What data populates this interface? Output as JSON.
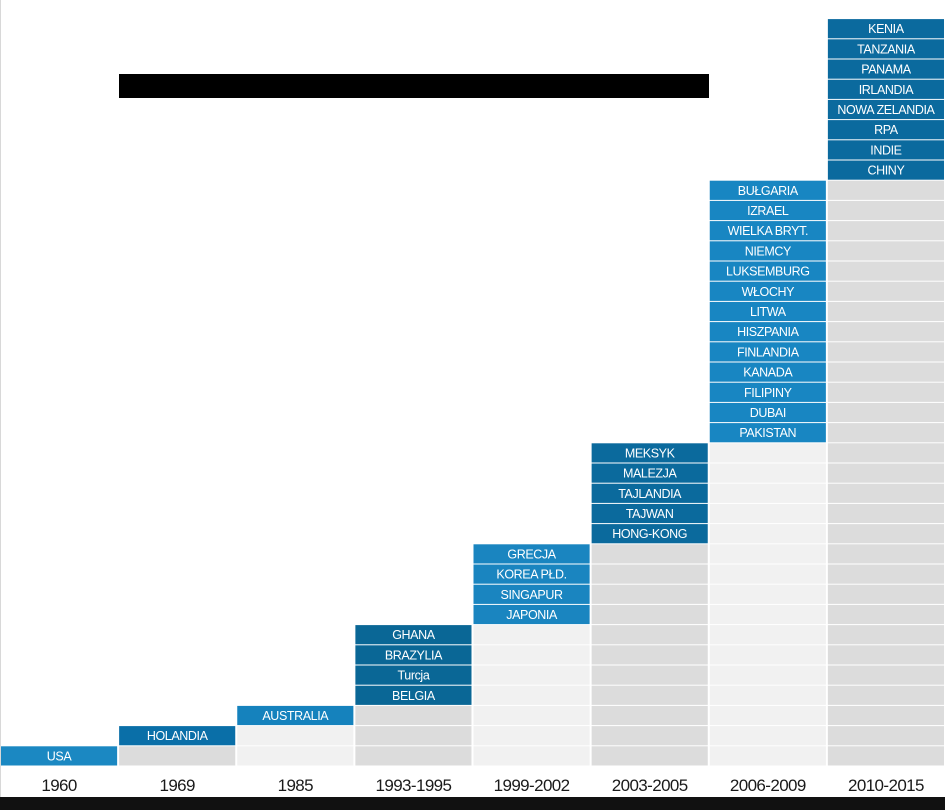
{
  "chart_data": {
    "type": "table",
    "categories": [
      "1960",
      "1969",
      "1985",
      "1993-1995",
      "1999-2002",
      "2003-2005",
      "2006-2009",
      "2010-2015"
    ],
    "columns": [
      {
        "period": "1960",
        "countries": [
          "USA"
        ]
      },
      {
        "period": "1969",
        "countries": [
          "HOLANDIA"
        ]
      },
      {
        "period": "1985",
        "countries": [
          "AUSTRALIA"
        ]
      },
      {
        "period": "1993-1995",
        "countries": [
          "BELGIA",
          "Turcja",
          "BRAZYLIA",
          "GHANA"
        ]
      },
      {
        "period": "1999-2002",
        "countries": [
          "JAPONIA",
          "SINGAPUR",
          "KOREA PŁD.",
          "GRECJA"
        ]
      },
      {
        "period": "2003-2005",
        "countries": [
          "HONG-KONG",
          "TAJWAN",
          "TAJLANDIA",
          "MALEZJA",
          "MEKSYK"
        ]
      },
      {
        "period": "2006-2009",
        "countries": [
          "PAKISTAN",
          "DUBAI",
          "FILIPINY",
          "KANADA",
          "FINLANDIA",
          "HISZPANIA",
          "LITWA",
          "WŁOCHY",
          "LUKSEMBURG",
          "NIEMCY",
          "WIELKA BRYT.",
          "IZRAEL",
          "BUŁGARIA"
        ]
      },
      {
        "period": "2010-2015",
        "countries": [
          "CHINY",
          "INDIE",
          "RPA",
          "NOWA ZELANDIA",
          "IRLANDIA",
          "PANAMA",
          "TANZANIA",
          "KENIA"
        ]
      }
    ],
    "cumulative_fill": true,
    "grid": false,
    "legend": "none"
  },
  "colors": {
    "label_text": "#ffffff",
    "axis_text": "#1a1a1a",
    "axis_line": "#111111",
    "redaction_bar": "#000000",
    "column_blues": [
      "#1b88c2",
      "#0a6fa8",
      "#1582bd",
      "#0a6796",
      "#1a85c0",
      "#0b6a9d",
      "#1886c2",
      "#0b6a9e"
    ],
    "column_fills": [
      "#f1f1f1",
      "#dcdcdc"
    ]
  }
}
